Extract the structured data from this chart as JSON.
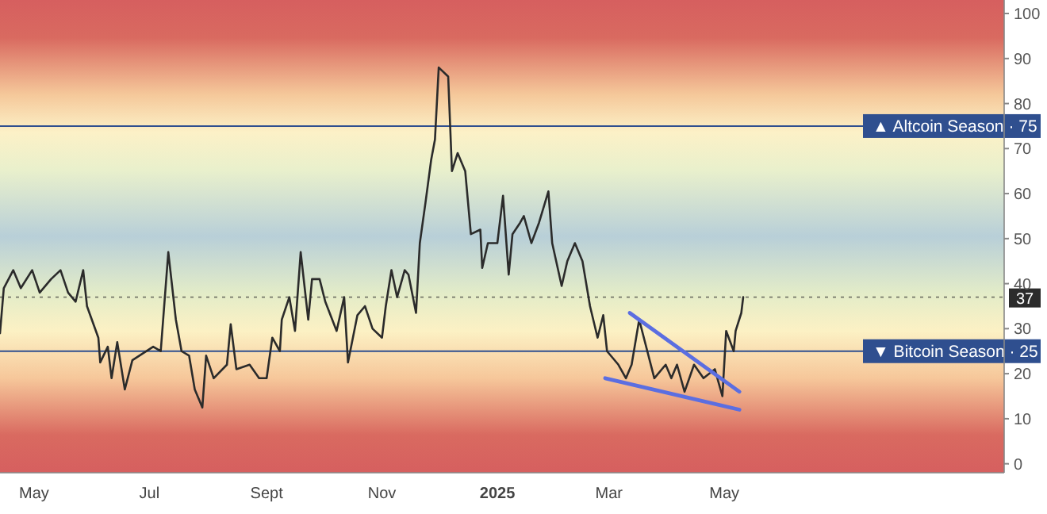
{
  "chart_data": {
    "type": "line",
    "xlim": [
      "2024-04-13",
      "2025-09-26"
    ],
    "xticks": [
      {
        "value": "2024-05-01",
        "label": "May"
      },
      {
        "value": "2024-07-01",
        "label": "Jul"
      },
      {
        "value": "2024-09-01",
        "label": "Sept"
      },
      {
        "value": "2024-11-01",
        "label": "Nov"
      },
      {
        "value": "2025-01-01",
        "label": "2025"
      },
      {
        "value": "2025-03-01",
        "label": "Mar"
      },
      {
        "value": "2025-05-01",
        "label": "May"
      }
    ],
    "ylim": [
      -2,
      103
    ],
    "yticks": [
      0,
      10,
      20,
      30,
      40,
      50,
      60,
      70,
      80,
      90,
      100
    ],
    "grid": false,
    "line_style": "solid",
    "marker": "none",
    "series": [
      {
        "color": "#2b2b2b",
        "x": [
          "2024-04-13",
          "2024-04-15",
          "2024-04-20",
          "2024-04-24",
          "2024-04-30",
          "2024-05-04",
          "2024-05-10",
          "2024-05-15",
          "2024-05-19",
          "2024-05-23",
          "2024-05-27",
          "2024-05-29",
          "2024-06-04",
          "2024-06-05",
          "2024-06-09",
          "2024-06-11",
          "2024-06-14",
          "2024-06-18",
          "2024-06-22",
          "2024-07-03",
          "2024-07-07",
          "2024-07-11",
          "2024-07-15",
          "2024-07-18",
          "2024-07-22",
          "2024-07-25",
          "2024-07-29",
          "2024-07-31",
          "2024-08-04",
          "2024-08-11",
          "2024-08-13",
          "2024-08-16",
          "2024-08-23",
          "2024-08-28",
          "2024-09-01",
          "2024-09-04",
          "2024-09-08",
          "2024-09-09",
          "2024-09-13",
          "2024-09-16",
          "2024-09-19",
          "2024-09-23",
          "2024-09-25",
          "2024-09-29",
          "2024-10-02",
          "2024-10-08",
          "2024-10-12",
          "2024-10-14",
          "2024-10-19",
          "2024-10-23",
          "2024-10-27",
          "2024-11-01",
          "2024-11-03",
          "2024-11-06",
          "2024-11-09",
          "2024-11-13",
          "2024-11-15",
          "2024-11-19",
          "2024-11-21",
          "2024-11-24",
          "2024-11-27",
          "2024-11-29",
          "2024-12-01",
          "2024-12-06",
          "2024-12-08",
          "2024-12-11",
          "2024-12-15",
          "2024-12-18",
          "2024-12-23",
          "2024-12-24",
          "2024-12-27",
          "2025-01-01",
          "2025-01-04",
          "2025-01-07",
          "2025-01-09",
          "2025-01-13",
          "2025-01-15",
          "2025-01-19",
          "2025-01-23",
          "2025-01-28",
          "2025-01-30",
          "2025-02-04",
          "2025-02-07",
          "2025-02-11",
          "2025-02-15",
          "2025-02-19",
          "2025-02-23",
          "2025-02-26",
          "2025-02-28",
          "2025-03-06",
          "2025-03-10",
          "2025-03-13",
          "2025-03-17",
          "2025-03-25",
          "2025-03-31",
          "2025-04-03",
          "2025-04-06",
          "2025-04-10",
          "2025-04-15",
          "2025-04-20",
          "2025-04-26",
          "2025-04-30",
          "2025-05-02",
          "2025-05-06",
          "2025-05-07",
          "2025-05-10",
          "2025-05-11"
        ],
        "values": [
          29,
          39,
          43,
          39,
          43,
          38,
          41,
          43,
          38,
          36,
          43,
          35,
          28,
          22.5,
          26,
          19,
          27,
          16.5,
          23,
          26,
          25,
          47,
          32,
          25,
          24,
          16.5,
          12.5,
          24,
          19,
          22,
          31,
          21,
          22,
          19,
          19,
          28,
          25,
          32,
          37,
          29.5,
          47,
          32,
          41,
          41,
          36,
          29.5,
          37,
          22.5,
          33,
          35,
          30,
          28,
          35,
          43,
          37,
          43,
          42,
          33.5,
          49,
          58,
          67.5,
          72,
          88,
          86,
          65,
          69,
          65,
          51,
          52,
          43.5,
          49,
          49,
          59.5,
          42,
          51,
          53.5,
          55,
          49,
          53.5,
          60.5,
          49,
          39.5,
          45,
          49,
          45,
          35,
          28,
          33,
          25,
          22,
          19,
          22,
          32,
          19,
          22,
          19,
          22,
          16,
          22,
          19,
          21,
          15,
          29.5,
          25,
          29.5,
          33.5,
          37
        ]
      },
      {
        "color": "#5b6ee1",
        "x": [
          "2025-03-12",
          "2025-05-09"
        ],
        "values": [
          33.5,
          16
        ]
      },
      {
        "color": "#5b6ee1",
        "x": [
          "2025-02-27",
          "2025-05-09"
        ],
        "values": [
          19,
          12
        ]
      }
    ],
    "ref_lines": [
      {
        "axis": "y",
        "value": 75,
        "label": "▲ Altcoin Season · 75",
        "color": "#2f4f8f",
        "line_style": "solid"
      },
      {
        "axis": "y",
        "value": 25,
        "label": "▼ Bitcoin Season · 25",
        "color": "#2f4f8f",
        "line_style": "solid"
      },
      {
        "axis": "y",
        "value": 37,
        "label": "37",
        "color": "#2b2b2b",
        "line_style": "dotted"
      }
    ]
  }
}
